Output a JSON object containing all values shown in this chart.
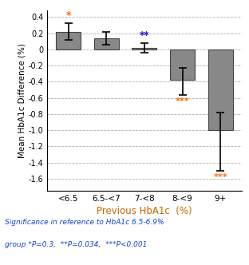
{
  "categories": [
    "<6.5",
    "6.5-<7",
    "7-<8",
    "8-<9",
    "9+"
  ],
  "values": [
    0.22,
    0.14,
    0.02,
    -0.38,
    -1.0
  ],
  "errors_upper": [
    0.1,
    0.08,
    0.06,
    0.15,
    0.22
  ],
  "errors_lower": [
    0.1,
    0.08,
    0.06,
    0.18,
    0.5
  ],
  "bar_color": "#888888",
  "bar_edgecolor": "#444444",
  "star_color_orange": "#FF6600",
  "star_color_blue": "#1111CC",
  "ylabel": "Mean HbA1c Difference (%)",
  "xlabel": "Previous HbA1c  (%)",
  "xlabel_color": "#cc6600",
  "ylim": [
    -1.75,
    0.48
  ],
  "yticks": [
    0.4,
    0.2,
    0.0,
    -0.2,
    -0.4,
    -0.6,
    -0.8,
    -1.0,
    -1.2,
    -1.4,
    -1.6
  ],
  "footnote_line1": "Significance in reference to HbA1c 6.5-6.9%",
  "footnote_line2": "group *P=0.3,  **P=0.034,  ***P<0.001",
  "footnote_color": "#1144CC",
  "background_color": "#ffffff",
  "grid_color": "#b0b0b0",
  "figsize": [
    3.12,
    3.32
  ],
  "dpi": 100
}
